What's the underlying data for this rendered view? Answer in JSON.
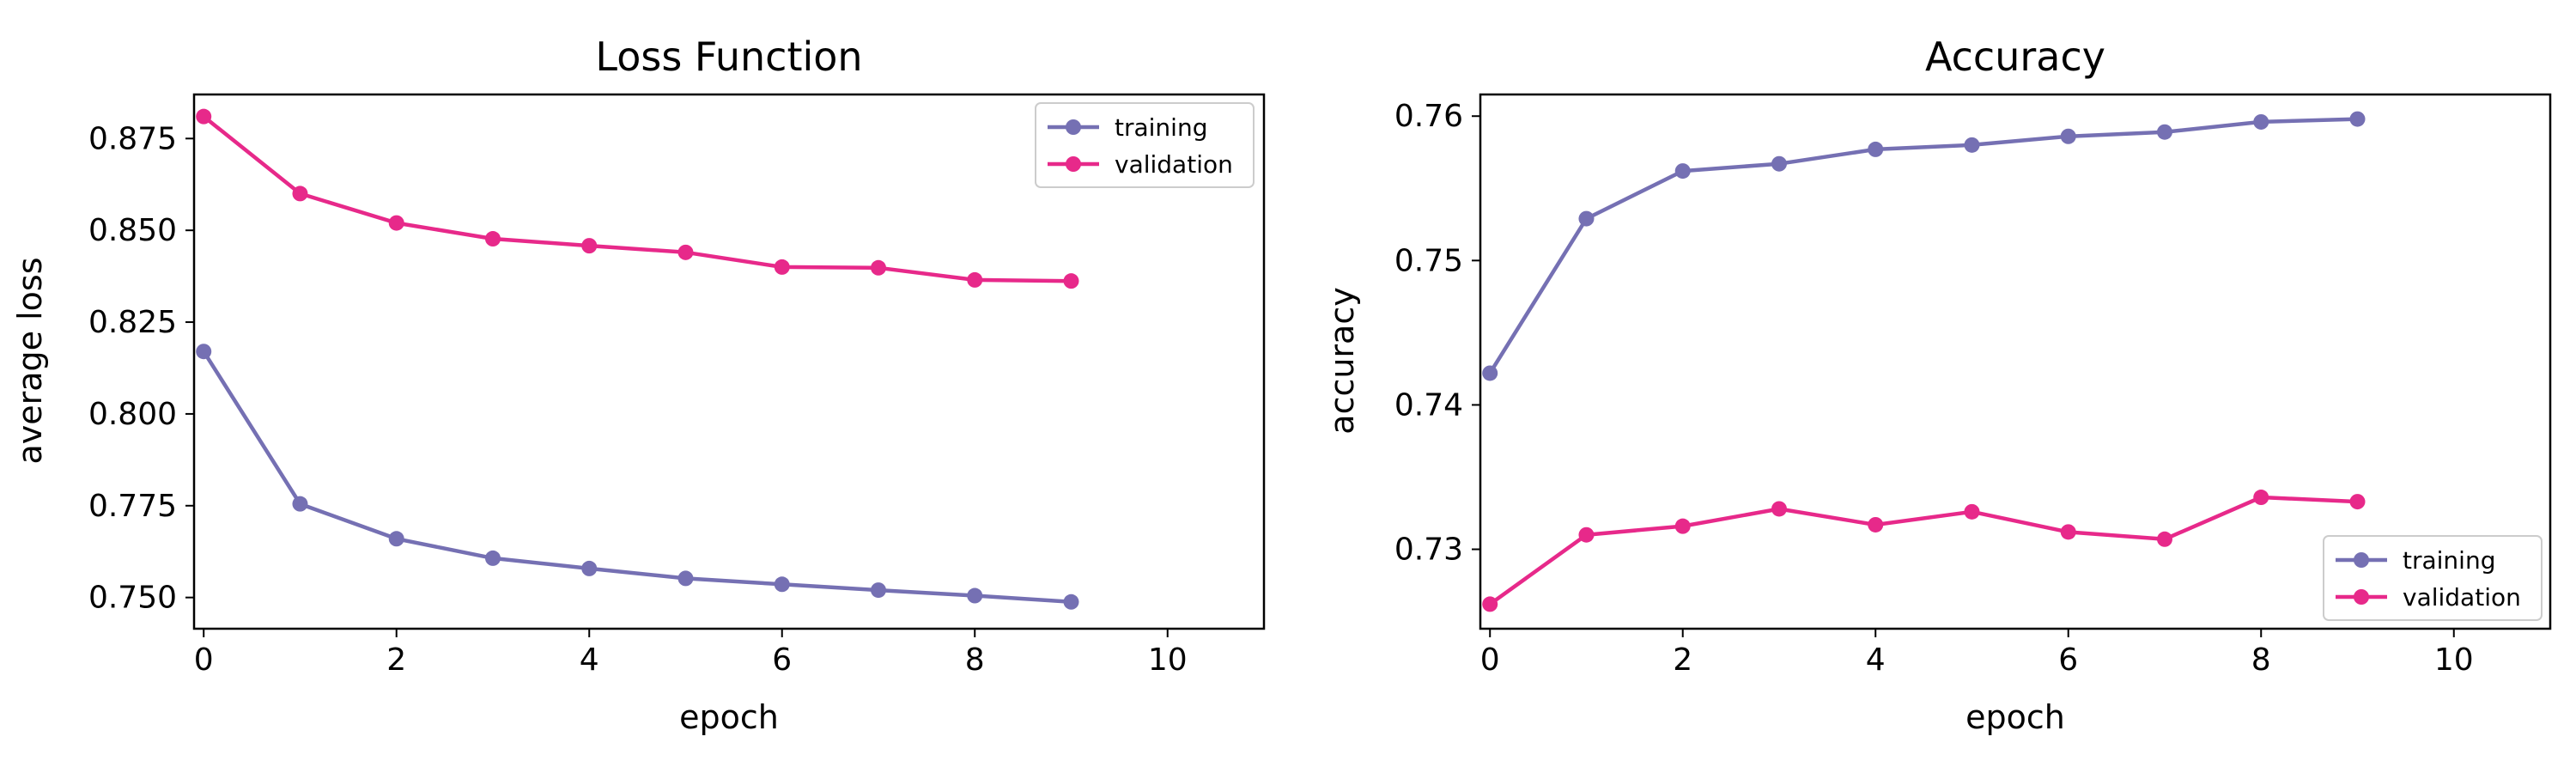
{
  "chart_data": [
    {
      "type": "line",
      "title": "Loss Function",
      "xlabel": "epoch",
      "ylabel": "average loss",
      "xlim": [
        -0.1,
        11
      ],
      "ylim": [
        0.7415,
        0.887
      ],
      "xticks": [
        0,
        2,
        4,
        6,
        8,
        10
      ],
      "xtick_labels": [
        "0",
        "2",
        "4",
        "6",
        "8",
        "10"
      ],
      "yticks": [
        0.75,
        0.775,
        0.8,
        0.825,
        0.85,
        0.875
      ],
      "ytick_labels": [
        "0.750",
        "0.775",
        "0.800",
        "0.825",
        "0.850",
        "0.875"
      ],
      "grid": false,
      "legend_position": "top-right",
      "x": [
        0,
        1,
        2,
        3,
        4,
        5,
        6,
        7,
        8,
        9
      ],
      "series": [
        {
          "name": "training",
          "color": "#7570b3",
          "values": [
            0.817,
            0.7755,
            0.766,
            0.7607,
            0.7579,
            0.7552,
            0.7536,
            0.752,
            0.7505,
            0.7488
          ]
        },
        {
          "name": "validation",
          "color": "#e7298a",
          "values": [
            0.881,
            0.86,
            0.852,
            0.8477,
            0.8458,
            0.844,
            0.84,
            0.8398,
            0.8365,
            0.8362
          ]
        }
      ]
    },
    {
      "type": "line",
      "title": "Accuracy",
      "xlabel": "epoch",
      "ylabel": "accuracy",
      "xlim": [
        -0.1,
        11
      ],
      "ylim": [
        0.7245,
        0.7615
      ],
      "xticks": [
        0,
        2,
        4,
        6,
        8,
        10
      ],
      "xtick_labels": [
        "0",
        "2",
        "4",
        "6",
        "8",
        "10"
      ],
      "yticks": [
        0.73,
        0.74,
        0.75,
        0.76
      ],
      "ytick_labels": [
        "0.73",
        "0.74",
        "0.75",
        "0.76"
      ],
      "grid": false,
      "legend_position": "bottom-right",
      "x": [
        0,
        1,
        2,
        3,
        4,
        5,
        6,
        7,
        8,
        9
      ],
      "series": [
        {
          "name": "training",
          "color": "#7570b3",
          "values": [
            0.7422,
            0.7529,
            0.7562,
            0.7567,
            0.7577,
            0.758,
            0.7586,
            0.7589,
            0.7596,
            0.7598
          ]
        },
        {
          "name": "validation",
          "color": "#e7298a",
          "values": [
            0.7262,
            0.731,
            0.7316,
            0.7328,
            0.7317,
            0.7326,
            0.7312,
            0.7307,
            0.7336,
            0.7333
          ]
        }
      ]
    }
  ]
}
